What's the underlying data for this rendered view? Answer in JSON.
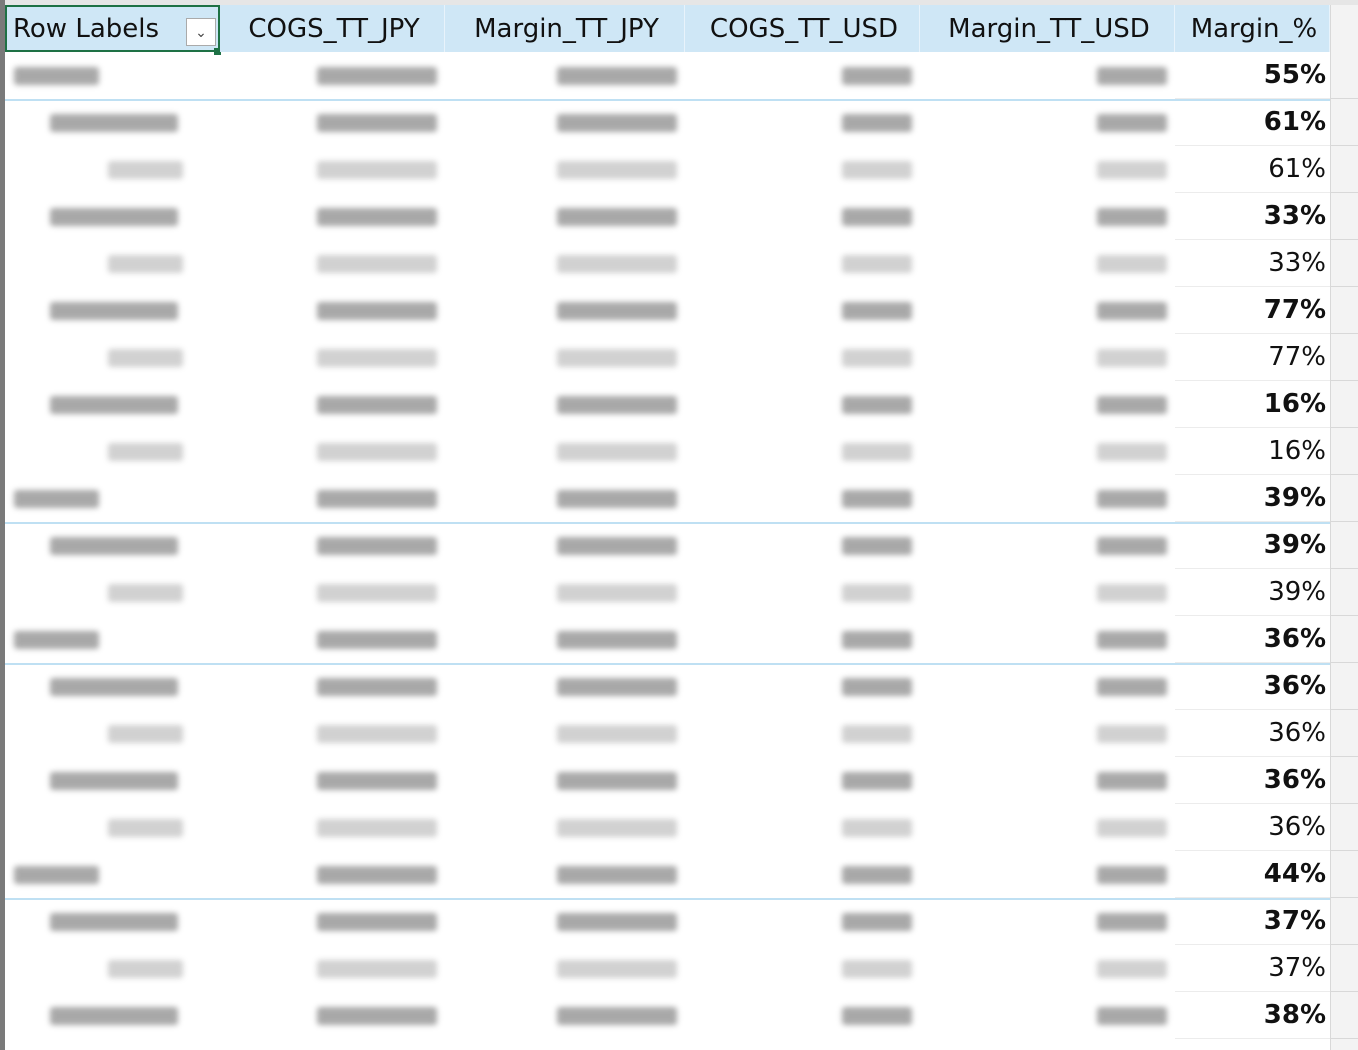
{
  "header": {
    "columns": [
      "Row Labels",
      "COGS_TT_JPY",
      "Margin_TT_JPY",
      "COGS_TT_USD",
      "Margin_TT_USD",
      "Margin_%"
    ]
  },
  "table": {
    "rows": [
      {
        "margin": "55%"
      },
      {
        "margin": "61%"
      },
      {
        "margin": "61%"
      },
      {
        "margin": "33%"
      },
      {
        "margin": "33%"
      },
      {
        "margin": "77%"
      },
      {
        "margin": "77%"
      },
      {
        "margin": "16%"
      },
      {
        "margin": "16%"
      },
      {
        "margin": "39%"
      },
      {
        "margin": "39%"
      },
      {
        "margin": "39%"
      },
      {
        "margin": "36%"
      },
      {
        "margin": "36%"
      },
      {
        "margin": "36%"
      },
      {
        "margin": "36%"
      },
      {
        "margin": "36%"
      },
      {
        "margin": "44%"
      },
      {
        "margin": "37%"
      },
      {
        "margin": "37%"
      },
      {
        "margin": "38%"
      }
    ]
  }
}
